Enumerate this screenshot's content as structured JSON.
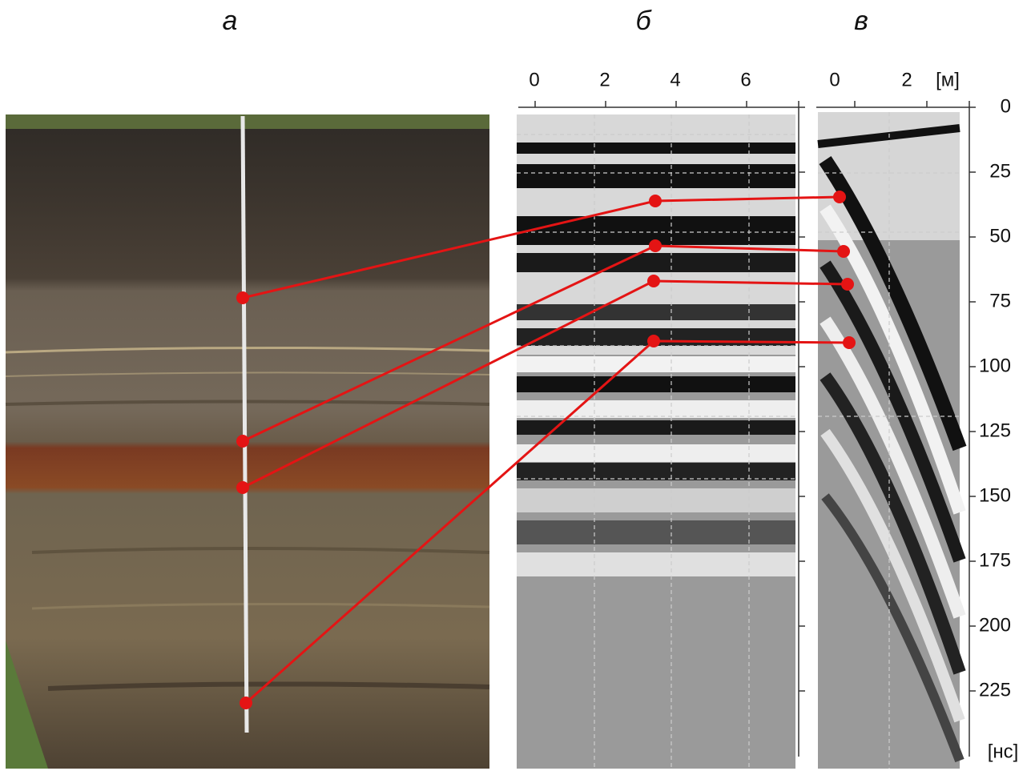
{
  "panels": [
    {
      "label": "а"
    },
    {
      "label": "б"
    },
    {
      "label": "в"
    }
  ],
  "distance_axis_b": {
    "ticks": [
      0,
      2,
      4,
      6
    ]
  },
  "distance_axis_c": {
    "ticks": [
      0,
      2
    ],
    "unit": "[м]"
  },
  "time_axis": {
    "ticks": [
      0,
      25,
      50,
      75,
      100,
      125,
      150,
      175,
      200,
      225
    ],
    "unit": "[нс]"
  }
}
